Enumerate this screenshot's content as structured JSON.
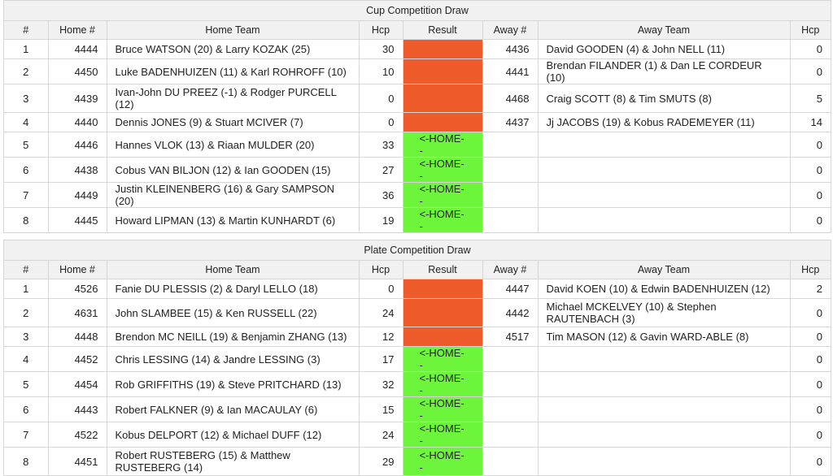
{
  "cup": {
    "title": "Cup Competition Draw",
    "headers": {
      "num": "#",
      "home_num": "Home #",
      "home_team": "Home Team",
      "hcp": "Hcp",
      "result": "Result",
      "away_num": "Away #",
      "away_team": "Away Team",
      "away_hcp": "Hcp"
    },
    "rows": [
      {
        "n": "1",
        "home": "4444",
        "home_team": "Bruce WATSON (20) & Larry KOZAK (25)",
        "hcp": "30",
        "result": "",
        "result_color": "#ee5a2a",
        "away": "4436",
        "away_team": "David GOODEN (4) & John NELL (11)",
        "away_hcp": "0"
      },
      {
        "n": "2",
        "home": "4450",
        "home_team": "Luke BADENHUIZEN (11) & Karl ROHROFF (10)",
        "hcp": "10",
        "result": "",
        "result_color": "#ee5a2a",
        "away": "4441",
        "away_team": "Brendan FILANDER (1) & Dan LE CORDEUR (10)",
        "away_hcp": "0"
      },
      {
        "n": "3",
        "home": "4439",
        "home_team": "Ivan-John DU PREEZ (-1) & Rodger PURCELL (12)",
        "hcp": "0",
        "result": "",
        "result_color": "#ee5a2a",
        "away": "4468",
        "away_team": "Craig SCOTT (8) & Tim SMUTS (8)",
        "away_hcp": "5"
      },
      {
        "n": "4",
        "home": "4440",
        "home_team": "Dennis JONES (9) & Stuart MCIVER (7)",
        "hcp": "0",
        "result": "",
        "result_color": "#ee5a2a",
        "away": "4437",
        "away_team": "Jj JACOBS (19) & Kobus RADEMEYER (11)",
        "away_hcp": "14"
      },
      {
        "n": "5",
        "home": "4446",
        "home_team": "Hannes VLOK (13) & Riaan MULDER (20)",
        "hcp": "33",
        "result": "<-HOME--",
        "result_color": "#6cf53a",
        "away": "",
        "away_team": "",
        "away_hcp": "0"
      },
      {
        "n": "6",
        "home": "4438",
        "home_team": "Cobus VAN BILJON (12) & Ian GOODEN (15)",
        "hcp": "27",
        "result": "<-HOME--",
        "result_color": "#6cf53a",
        "away": "",
        "away_team": "",
        "away_hcp": "0"
      },
      {
        "n": "7",
        "home": "4449",
        "home_team": "Justin KLEINENBERG (16) & Gary SAMPSON (20)",
        "hcp": "36",
        "result": "<-HOME--",
        "result_color": "#6cf53a",
        "away": "",
        "away_team": "",
        "away_hcp": "0"
      },
      {
        "n": "8",
        "home": "4445",
        "home_team": "Howard LIPMAN (13) & Martin KUNHARDT (6)",
        "hcp": "19",
        "result": "<-HOME--",
        "result_color": "#6cf53a",
        "away": "",
        "away_team": "",
        "away_hcp": "0"
      }
    ]
  },
  "plate": {
    "title": "Plate Competition Draw",
    "headers": {
      "num": "#",
      "home_num": "Home #",
      "home_team": "Home Team",
      "hcp": "Hcp",
      "result": "Result",
      "away_num": "Away #",
      "away_team": "Away Team",
      "away_hcp": "Hcp"
    },
    "rows": [
      {
        "n": "1",
        "home": "4526",
        "home_team": "Fanie DU PLESSIS (2) & Daryl LELLO (18)",
        "hcp": "0",
        "result": "",
        "result_color": "#ee5a2a",
        "away": "4447",
        "away_team": "David KOEN (10) & Edwin BADENHUIZEN (12)",
        "away_hcp": "2"
      },
      {
        "n": "2",
        "home": "4631",
        "home_team": "John SLAMBEE (15) & Ken RUSSELL (22)",
        "hcp": "24",
        "result": "",
        "result_color": "#ee5a2a",
        "away": "4442",
        "away_team": "Michael MCKELVEY (10) & Stephen RAUTENBACH (3)",
        "away_hcp": "0"
      },
      {
        "n": "3",
        "home": "4448",
        "home_team": "Brendon MC NEILL (19) & Benjamin ZHANG (13)",
        "hcp": "12",
        "result": "",
        "result_color": "#ee5a2a",
        "away": "4517",
        "away_team": "Tim MASON (12) & Gavin WARD-ABLE (8)",
        "away_hcp": "0"
      },
      {
        "n": "4",
        "home": "4452",
        "home_team": "Chris LESSING (14) & Jandre LESSING (3)",
        "hcp": "17",
        "result": "<-HOME--",
        "result_color": "#6cf53a",
        "away": "",
        "away_team": "",
        "away_hcp": "0"
      },
      {
        "n": "5",
        "home": "4454",
        "home_team": "Rob GRIFFITHS (19) & Steve PRITCHARD (13)",
        "hcp": "32",
        "result": "<-HOME--",
        "result_color": "#6cf53a",
        "away": "",
        "away_team": "",
        "away_hcp": "0"
      },
      {
        "n": "6",
        "home": "4443",
        "home_team": "Robert FALKNER (9) & Ian MACAULAY (6)",
        "hcp": "15",
        "result": "<-HOME--",
        "result_color": "#6cf53a",
        "away": "",
        "away_team": "",
        "away_hcp": "0"
      },
      {
        "n": "7",
        "home": "4522",
        "home_team": "Kobus DELPORT (12) & Michael DUFF (12)",
        "hcp": "24",
        "result": "<-HOME--",
        "result_color": "#6cf53a",
        "away": "",
        "away_team": "",
        "away_hcp": "0"
      },
      {
        "n": "8",
        "home": "4451",
        "home_team": "Robert RUSTEBERG (15) & Matthew RUSTEBERG (14)",
        "hcp": "29",
        "result": "<-HOME--",
        "result_color": "#6cf53a",
        "away": "",
        "away_team": "",
        "away_hcp": "0"
      }
    ]
  }
}
